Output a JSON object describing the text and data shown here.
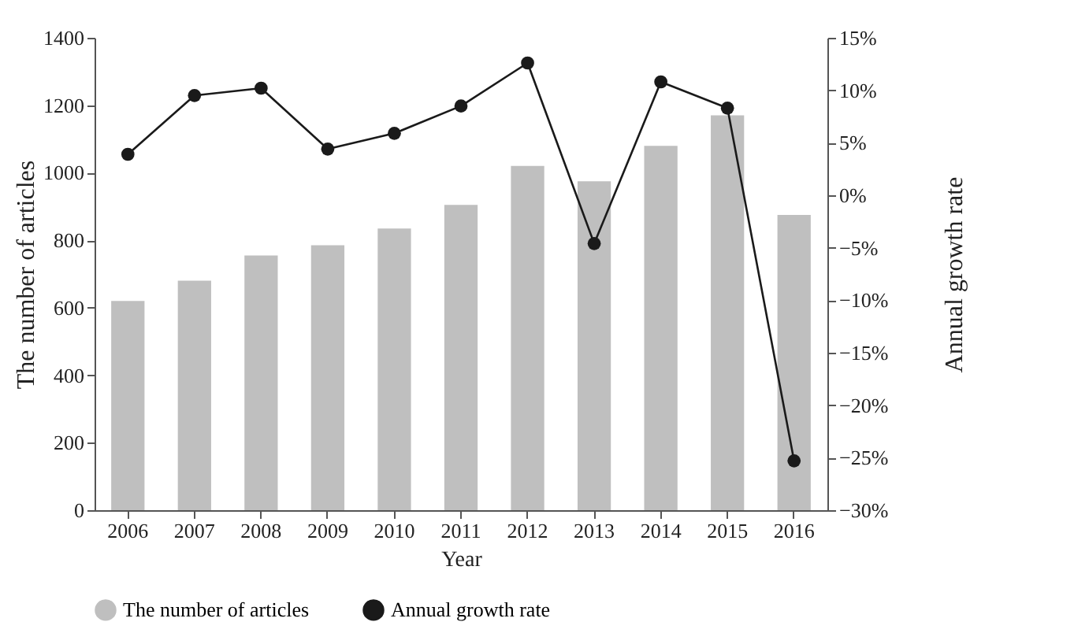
{
  "chart_data": {
    "type": "bar",
    "xlabel": "Year",
    "ylabel": "The number of articles",
    "y2label": "Annual growth rate",
    "categories": [
      "2006",
      "2007",
      "2008",
      "2009",
      "2010",
      "2011",
      "2012",
      "2013",
      "2014",
      "2015",
      "2016"
    ],
    "series": [
      {
        "name": "The number of articles",
        "color": "#bfbfbf",
        "values": [
          620,
          680,
          755,
          785,
          835,
          905,
          1020,
          975,
          1080,
          1170,
          875
        ]
      },
      {
        "name": "Annual growth rate",
        "type": "line",
        "axis": "y2",
        "color": "#1a1a1a",
        "values": [
          3.9,
          9.5,
          10.2,
          4.4,
          5.9,
          8.5,
          12.6,
          -4.6,
          10.8,
          8.3,
          -25.3
        ]
      }
    ],
    "ylim": [
      0,
      1400
    ],
    "yticks": [
      0,
      200,
      400,
      600,
      800,
      1000,
      1200,
      1400
    ],
    "y2lim": [
      -30,
      15
    ],
    "y2ticks": [
      {
        "value": -30,
        "label": "−30%"
      },
      {
        "value": -25,
        "label": "−25%"
      },
      {
        "value": -20,
        "label": "−20%"
      },
      {
        "value": -15,
        "label": "−15%"
      },
      {
        "value": -10,
        "label": "−10%"
      },
      {
        "value": -5,
        "label": "−5%"
      },
      {
        "value": 0,
        "label": "0%"
      },
      {
        "value": 5,
        "label": "5%"
      },
      {
        "value": 10,
        "label": "10%"
      },
      {
        "value": 15,
        "label": "15%"
      }
    ],
    "marker": "circle",
    "legend": "bottom",
    "grid": false
  }
}
